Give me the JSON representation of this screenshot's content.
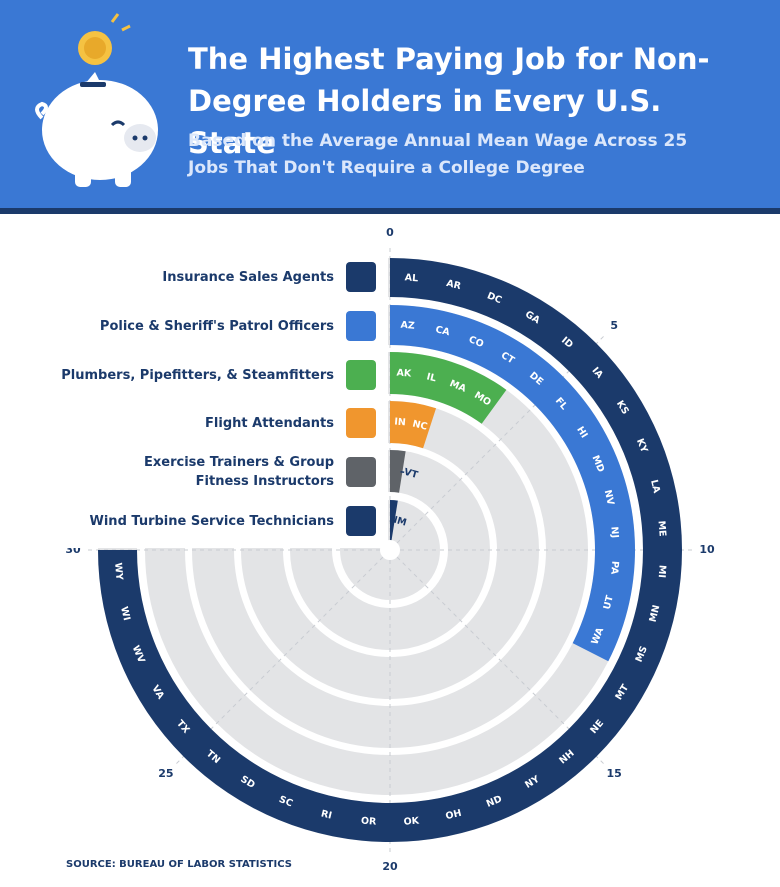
{
  "header": {
    "title": "The Highest Paying Job for Non-Degree Holders in Every U.S. State",
    "subtitle": "Based on the Average Annual Mean Wage Across 25 Jobs That Don't Require a College Degree"
  },
  "source": "SOURCE: BUREAU OF LABOR STATISTICS",
  "chart_data": {
    "type": "radial_bar",
    "lim": [
      0,
      40
    ],
    "ticks": [
      0,
      5,
      10,
      15,
      20,
      25,
      30
    ],
    "series": [
      {
        "name": "Insurance Sales Agents",
        "color": "#1b3a6b",
        "value": 30,
        "states": [
          "AL",
          "AR",
          "DC",
          "GA",
          "ID",
          "IA",
          "KS",
          "KY",
          "LA",
          "ME",
          "MI",
          "MN",
          "MS",
          "MT",
          "NE",
          "NH",
          "NY",
          "ND",
          "OH",
          "OK",
          "OR",
          "RI",
          "SC",
          "SD",
          "TN",
          "TX",
          "VA",
          "WV",
          "WI",
          "WY"
        ]
      },
      {
        "name": "Police & Sheriff's Patrol Officers",
        "color": "#3a78d4",
        "value": 13,
        "states": [
          "AZ",
          "CA",
          "CO",
          "CT",
          "DE",
          "FL",
          "HI",
          "MD",
          "NV",
          "NJ",
          "PA",
          "UT",
          "WA"
        ]
      },
      {
        "name": "Plumbers, Pipefitters, & Steamfitters",
        "color": "#4caf50",
        "value": 4,
        "states": [
          "AK",
          "IL",
          "MA",
          "MO"
        ]
      },
      {
        "name": "Flight Attendants",
        "color": "#f0962e",
        "value": 2,
        "states": [
          "IN",
          "NC"
        ]
      },
      {
        "name": "Exercise Trainers & Group Fitness Instructors",
        "color": "#5f6368",
        "value": 1,
        "states": [
          "VT"
        ]
      },
      {
        "name": "Wind Turbine Service Technicians",
        "color": "#1b3a6b",
        "value": 1,
        "states": [
          "NM"
        ]
      }
    ]
  }
}
